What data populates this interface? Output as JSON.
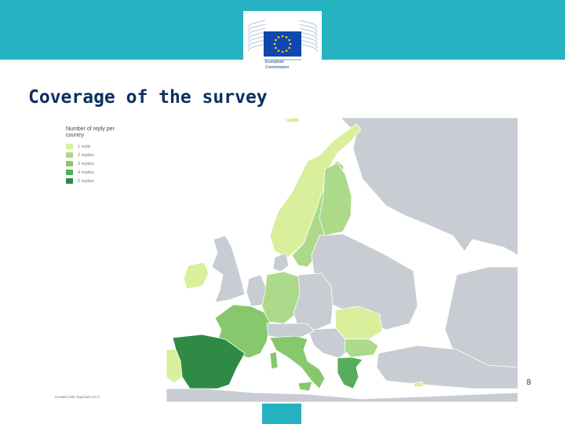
{
  "slide": {
    "title": "Coverage of the survey",
    "page_number": "8",
    "banner_color": "#25b3c1"
  },
  "logo": {
    "line1": "European",
    "line2": "Commission",
    "flag_color": "#0f47af",
    "star_color": "#f7d117"
  },
  "legend": {
    "title": "Number of reply per country",
    "items": [
      {
        "label": "1 reply",
        "color": "#d9ef9b",
        "replies": 1
      },
      {
        "label": "2 replies",
        "color": "#acd98a",
        "replies": 2
      },
      {
        "label": "3 replies",
        "color": "#87c86e",
        "replies": 3
      },
      {
        "label": "4 replies",
        "color": "#56ad5c",
        "replies": 4
      },
      {
        "label": "5 replies",
        "color": "#2f8a46",
        "replies": 5
      }
    ]
  },
  "map": {
    "credit": "Created with mapchart.net ©",
    "countries": [
      {
        "name": "Spain",
        "replies": 5
      },
      {
        "name": "Greece",
        "replies": 4
      },
      {
        "name": "France",
        "replies": 3
      },
      {
        "name": "Italy",
        "replies": 3
      },
      {
        "name": "Finland",
        "replies": 2
      },
      {
        "name": "Sweden",
        "replies": 2
      },
      {
        "name": "Germany",
        "replies": 2
      },
      {
        "name": "Bulgaria",
        "replies": 2
      },
      {
        "name": "Norway",
        "replies": 1
      },
      {
        "name": "Ireland",
        "replies": 1
      },
      {
        "name": "Portugal",
        "replies": 1
      },
      {
        "name": "Romania",
        "replies": 1
      },
      {
        "name": "Cyprus",
        "replies": 1
      },
      {
        "name": "Iceland",
        "replies": 1
      }
    ]
  }
}
